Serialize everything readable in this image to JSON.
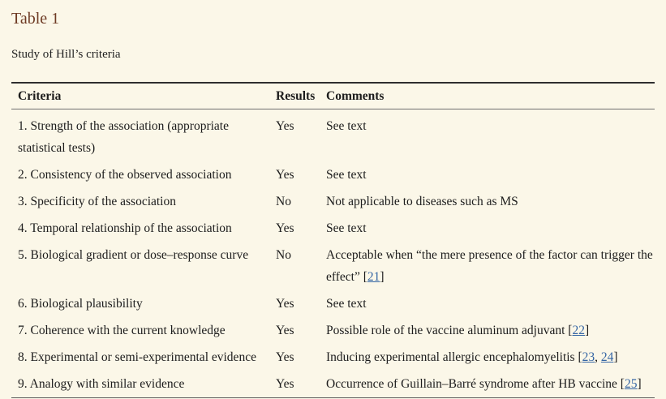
{
  "page": {
    "title": "Table 1",
    "caption": "Study of Hill’s criteria"
  },
  "colors": {
    "background": "#fbf7e8",
    "title_brown": "#6e3b24",
    "body_text": "#1c1c1c",
    "link_blue": "#3465a4",
    "rule_dark": "#2e2e2e",
    "rule_light": "#6f6f6f"
  },
  "table": {
    "headers": [
      "Criteria",
      "Results",
      "Comments"
    ],
    "rows": [
      {
        "criteria": "1. Strength of the association (appropriate statistical tests)",
        "result": "Yes",
        "comment": [
          {
            "text": "See text"
          }
        ]
      },
      {
        "criteria": "2. Consistency of the observed association",
        "result": "Yes",
        "comment": [
          {
            "text": "See text"
          }
        ]
      },
      {
        "criteria": "3. Specificity of the association",
        "result": "No",
        "comment": [
          {
            "text": "Not applicable to diseases such as MS"
          }
        ]
      },
      {
        "criteria": "4. Temporal relationship of the association",
        "result": "Yes",
        "comment": [
          {
            "text": "See text"
          }
        ]
      },
      {
        "criteria": "5. Biological gradient or dose–response curve",
        "result": "No",
        "comment": [
          {
            "text": "Acceptable when “the mere presence of the factor can trigger the effect” ["
          },
          {
            "link": "21"
          },
          {
            "text": "]"
          }
        ]
      },
      {
        "criteria": "6. Biological plausibility",
        "result": "Yes",
        "comment": [
          {
            "text": "See text"
          }
        ]
      },
      {
        "criteria": "7. Coherence with the current knowledge",
        "result": "Yes",
        "comment": [
          {
            "text": "Possible role of the vaccine aluminum adjuvant ["
          },
          {
            "link": "22"
          },
          {
            "text": "]"
          }
        ]
      },
      {
        "criteria": "8. Experimental or semi-experimental evidence",
        "result": "Yes",
        "comment": [
          {
            "text": "Inducing experimental allergic encephalomyelitis ["
          },
          {
            "link": "23"
          },
          {
            "text": ", "
          },
          {
            "link": "24"
          },
          {
            "text": "]"
          }
        ]
      },
      {
        "criteria": "9. Analogy with similar evidence",
        "result": "Yes",
        "comment": [
          {
            "text": "Occurrence of Guillain–Barré syndrome after HB vaccine ["
          },
          {
            "link": "25"
          },
          {
            "text": "]"
          }
        ]
      }
    ]
  }
}
